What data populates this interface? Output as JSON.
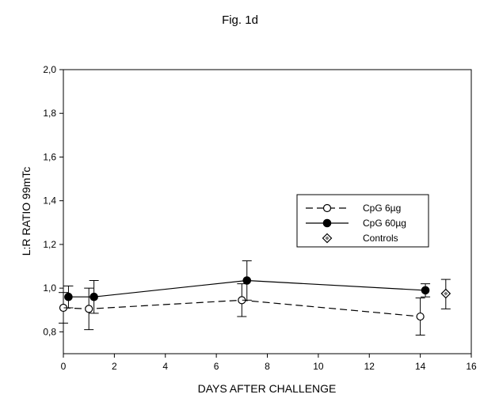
{
  "figure_title": "Fig. 1d",
  "chart_data": {
    "type": "line",
    "title": "Fig. 1d",
    "xlabel": "DAYS AFTER CHALLENGE",
    "ylabel": "L:R RATIO 99mTc",
    "xlim": [
      0,
      16
    ],
    "ylim": [
      0.7,
      2.0
    ],
    "x_ticks": [
      0,
      2,
      4,
      6,
      8,
      10,
      12,
      14,
      16
    ],
    "x_tick_labels": [
      "0",
      "2",
      "4",
      "6",
      "8",
      "10",
      "12",
      "14",
      "16"
    ],
    "y_ticks": [
      0.8,
      1.0,
      1.2,
      1.4,
      1.6,
      1.8,
      2.0
    ],
    "y_tick_labels": [
      "0,8",
      "1,0",
      "1,2",
      "1,4",
      "1,6",
      "1,8",
      "2,0"
    ],
    "grid": false,
    "legend_position": "right-middle",
    "series": [
      {
        "name": "CpG 6µg",
        "line_style": "dashed",
        "marker": "open-circle",
        "color": "#000000",
        "points": [
          {
            "x": 0,
            "y": 0.91,
            "err_low": 0.84,
            "err_high": 0.98
          },
          {
            "x": 1,
            "y": 0.905,
            "err_low": 0.81,
            "err_high": 1.0
          },
          {
            "x": 7,
            "y": 0.945,
            "err_low": 0.87,
            "err_high": 1.02
          },
          {
            "x": 14,
            "y": 0.87,
            "err_low": 0.785,
            "err_high": 0.955
          }
        ]
      },
      {
        "name": "CpG 60µg",
        "line_style": "solid",
        "marker": "filled-circle",
        "color": "#000000",
        "points": [
          {
            "x": 0.2,
            "y": 0.96,
            "err_low": 0.91,
            "err_high": 1.01
          },
          {
            "x": 1.2,
            "y": 0.96,
            "err_low": 0.885,
            "err_high": 1.035
          },
          {
            "x": 7.2,
            "y": 1.035,
            "err_low": 0.945,
            "err_high": 1.125
          },
          {
            "x": 14.2,
            "y": 0.99,
            "err_low": 0.96,
            "err_high": 1.02
          }
        ]
      },
      {
        "name": "Controls",
        "line_style": "none",
        "marker": "dotted-diamond",
        "color": "#000000",
        "points": [
          {
            "x": 15,
            "y": 0.975,
            "err_low": 0.905,
            "err_high": 1.04
          }
        ]
      }
    ]
  }
}
